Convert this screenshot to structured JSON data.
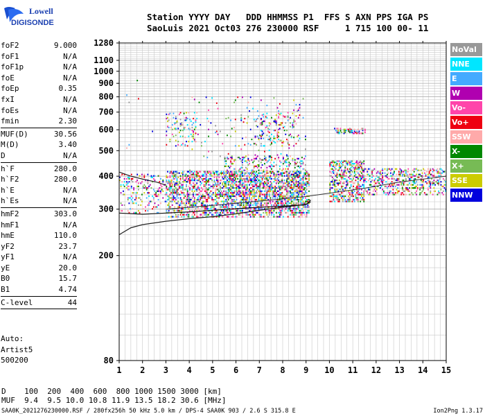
{
  "logo": {
    "line1": "Lowell",
    "line2": "DIGISONDE"
  },
  "header": {
    "row1": "Station YYYY DAY   DDD HHMMSS P1  FFS S AXN PPS IGA PS",
    "row2": "SaoLuis 2021 Oct03 276 230000 RSF     1 715 100 00- 11"
  },
  "params": [
    [
      {
        "label": "foF2",
        "value": "9.000"
      },
      {
        "label": "foF1",
        "value": "N/A"
      },
      {
        "label": "foF1p",
        "value": "N/A"
      },
      {
        "label": "foE",
        "value": "N/A"
      },
      {
        "label": "foEp",
        "value": "0.35"
      },
      {
        "label": "fxI",
        "value": "N/A"
      },
      {
        "label": "foEs",
        "value": "N/A"
      },
      {
        "label": "fmin",
        "value": "2.30"
      }
    ],
    [
      {
        "label": "MUF(D)",
        "value": "30.56"
      },
      {
        "label": "M(D)",
        "value": "3.40"
      },
      {
        "label": "D",
        "value": "N/A"
      }
    ],
    [
      {
        "label": "h`F",
        "value": "280.0"
      },
      {
        "label": "h`F2",
        "value": "280.0"
      },
      {
        "label": "h`E",
        "value": "N/A"
      },
      {
        "label": "h`Es",
        "value": "N/A"
      }
    ],
    [
      {
        "label": "hmF2",
        "value": "303.0"
      },
      {
        "label": "hmF1",
        "value": "N/A"
      },
      {
        "label": "hmE",
        "value": "110.0"
      },
      {
        "label": "yF2",
        "value": "23.7"
      },
      {
        "label": "yF1",
        "value": "N/A"
      },
      {
        "label": "yE",
        "value": "20.0"
      },
      {
        "label": "B0",
        "value": "15.7"
      },
      {
        "label": "B1",
        "value": "4.74"
      }
    ],
    [
      {
        "label": "C-level",
        "value": "44"
      }
    ]
  ],
  "auto": {
    "line1": "Auto:",
    "line2": "Artist5",
    "line3": "500200"
  },
  "legend": [
    {
      "label": "NoVal",
      "color": "#999999"
    },
    {
      "label": "NNE",
      "color": "#00e6ff"
    },
    {
      "label": "E",
      "color": "#44aaff"
    },
    {
      "label": "W",
      "color": "#b000b0"
    },
    {
      "label": "Vo-",
      "color": "#ff44aa"
    },
    {
      "label": "Vo+",
      "color": "#ee0011"
    },
    {
      "label": "SSW",
      "color": "#ffaaaa"
    },
    {
      "label": "X-",
      "color": "#008800"
    },
    {
      "label": "X+",
      "color": "#77bb55"
    },
    {
      "label": "SSE",
      "color": "#cccc00"
    },
    {
      "label": "NNW",
      "color": "#0000dd"
    }
  ],
  "dmuf": {
    "row1": "D    100  200  400  600  800 1000 1500 3000 [km]",
    "row2": "MUF  9.4  9.5 10.0 10.8 11.9 13.5 18.2 30.6 [MHz]"
  },
  "footer": {
    "text": "SAA0K_2021276230000.RSF / 280fx256h 50 kHz 5.0 km / DPS-4 SAA0K 903 / 2.6 S 315.8 E",
    "version": "Ion2Png 1.3.17"
  },
  "chart_data": {
    "type": "scatter",
    "xlim": [
      1,
      15
    ],
    "ylim": [
      80,
      1280
    ],
    "y_scale": "log",
    "xticks": [
      "1",
      "2",
      "3",
      "4",
      "5",
      "6",
      "7",
      "8",
      "9",
      "10",
      "11",
      "12",
      "13",
      "14",
      "15"
    ],
    "yticks": [
      {
        "v": 80,
        "label": "80"
      },
      {
        "v": 200,
        "label": "200"
      },
      {
        "v": 300,
        "label": "300"
      },
      {
        "v": 400,
        "label": "400"
      },
      {
        "v": 500,
        "label": "500"
      },
      {
        "v": 600,
        "label": "600"
      },
      {
        "v": 700,
        "label": "700"
      },
      {
        "v": 800,
        "label": "800"
      },
      {
        "v": 900,
        "label": "900"
      },
      {
        "v": 1000,
        "label": "1000"
      },
      {
        "v": 1100,
        "label": "1100"
      },
      {
        "v": 1280,
        "label": "1280"
      }
    ],
    "grid": true,
    "bands": [
      {
        "x0": 1.0,
        "x1": 3.0,
        "h0": 290,
        "h1": 410,
        "density": 0.18
      },
      {
        "x0": 3.0,
        "x1": 9.1,
        "h0": 280,
        "h1": 420,
        "density": 0.5
      },
      {
        "x0": 5.5,
        "x1": 9.0,
        "h0": 300,
        "h1": 480,
        "density": 0.2
      },
      {
        "x0": 10.0,
        "x1": 11.5,
        "h0": 320,
        "h1": 460,
        "density": 0.45
      },
      {
        "x0": 11.5,
        "x1": 15.0,
        "h0": 340,
        "h1": 430,
        "density": 0.32
      },
      {
        "x0": 3.0,
        "x1": 4.3,
        "h0": 520,
        "h1": 700,
        "density": 0.1
      },
      {
        "x0": 6.8,
        "x1": 8.6,
        "h0": 520,
        "h1": 700,
        "density": 0.09
      },
      {
        "x0": 10.2,
        "x1": 11.6,
        "h0": 580,
        "h1": 610,
        "density": 0.35
      },
      {
        "x0": 4.0,
        "x1": 9.0,
        "h0": 420,
        "h1": 800,
        "density": 0.02
      },
      {
        "x0": 1.2,
        "x1": 2.5,
        "h0": 500,
        "h1": 1000,
        "density": 0.004
      }
    ],
    "profile_curve": [
      [
        1.0,
        240
      ],
      [
        1.5,
        255
      ],
      [
        2,
        262
      ],
      [
        3,
        270
      ],
      [
        4,
        276
      ],
      [
        5,
        281
      ],
      [
        6,
        288
      ],
      [
        7,
        297
      ],
      [
        8,
        305
      ],
      [
        9,
        313
      ],
      [
        9.2,
        320
      ]
    ],
    "trace_curve": [
      [
        1.0,
        290
      ],
      [
        2,
        287
      ],
      [
        3,
        290
      ],
      [
        4,
        293
      ],
      [
        5,
        297
      ],
      [
        6,
        301
      ],
      [
        7,
        305
      ],
      [
        8,
        308
      ],
      [
        9,
        312
      ],
      [
        9.2,
        325
      ]
    ],
    "upper_trace": [
      [
        1.0,
        415
      ],
      [
        1.5,
        400
      ],
      [
        2,
        390
      ],
      [
        2.6,
        380
      ],
      [
        3.0,
        370
      ]
    ],
    "profile_line": [
      [
        3.0,
        300
      ],
      [
        5.0,
        310
      ],
      [
        7.0,
        322
      ],
      [
        9.0,
        335
      ],
      [
        10.0,
        345
      ],
      [
        11.5,
        360
      ],
      [
        13.0,
        380
      ],
      [
        15.0,
        400
      ]
    ]
  }
}
